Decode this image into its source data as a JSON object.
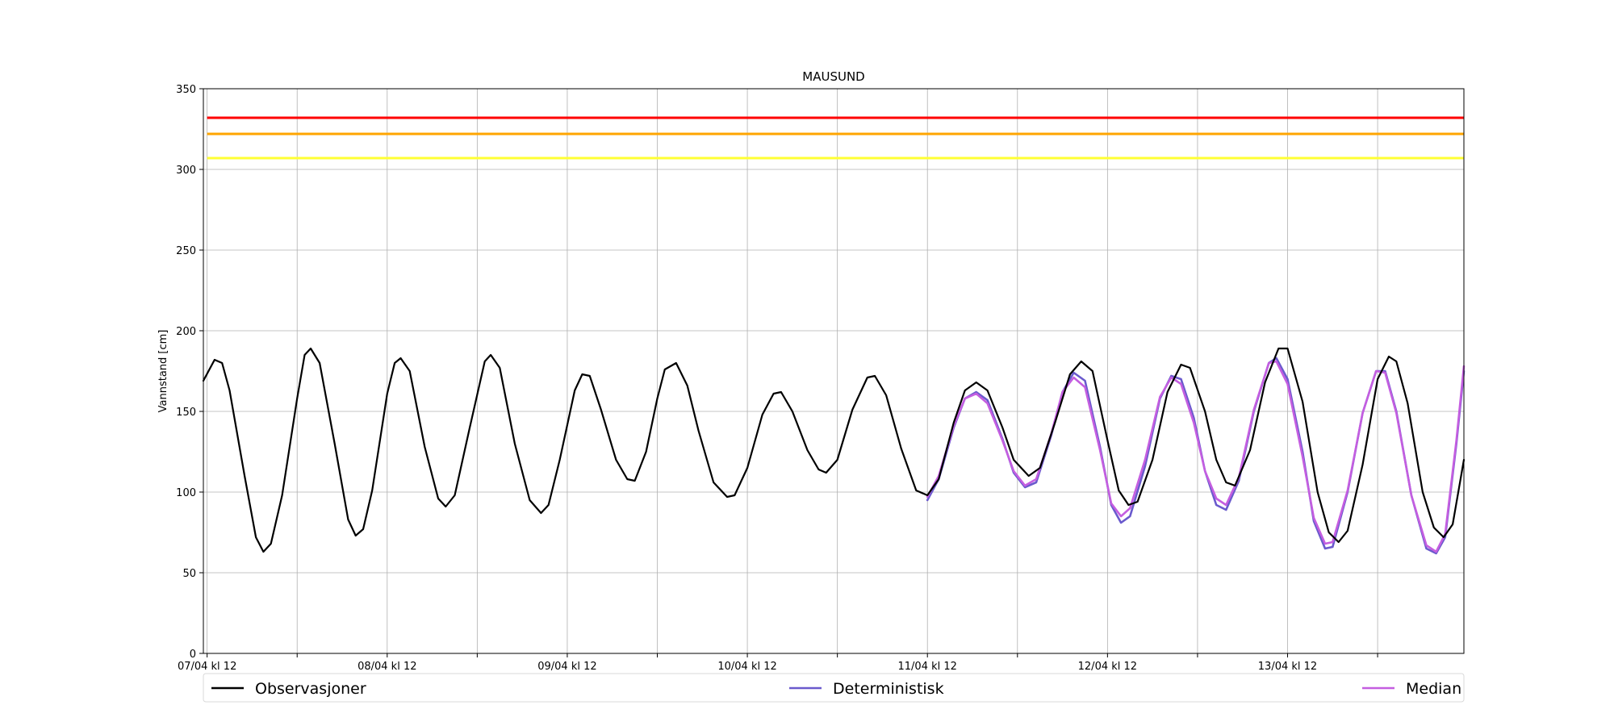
{
  "chart_data": {
    "type": "line",
    "title": "MAUSUND",
    "ylabel": "Vannstand [cm]",
    "xlabel": "",
    "ylim": [
      0,
      350
    ],
    "yticks": [
      0,
      50,
      100,
      150,
      200,
      250,
      300,
      350
    ],
    "x_unit": "hours after 07/04 kl 12",
    "xlim": [
      -0.5,
      167.5
    ],
    "xticks": [
      {
        "x": 0,
        "label": "07/04 kl 12"
      },
      {
        "x": 24,
        "label": "08/04 kl 12"
      },
      {
        "x": 48,
        "label": "09/04 kl 12"
      },
      {
        "x": 72,
        "label": "10/04 kl 12"
      },
      {
        "x": 96,
        "label": "11/04 kl 12"
      },
      {
        "x": 120,
        "label": "12/04 kl 12"
      },
      {
        "x": 144,
        "label": "13/04 kl 12"
      }
    ],
    "minor_xticks": [
      12,
      36,
      60,
      84,
      108,
      132,
      156
    ],
    "grid": true,
    "legend_position": "bottom",
    "thresholds": [
      {
        "value": 332,
        "color": "#ff0000"
      },
      {
        "value": 322,
        "color": "#ffa500"
      },
      {
        "value": 307,
        "color": "#ffff33"
      }
    ],
    "series": [
      {
        "name": "Observasjoner",
        "color": "#000000",
        "points": [
          [
            -0.5,
            169
          ],
          [
            1,
            182
          ],
          [
            2,
            180
          ],
          [
            3,
            163
          ],
          [
            5,
            110
          ],
          [
            6.5,
            72
          ],
          [
            7.5,
            63
          ],
          [
            8.5,
            68
          ],
          [
            10,
            98
          ],
          [
            12,
            158
          ],
          [
            13,
            185
          ],
          [
            13.8,
            189
          ],
          [
            15,
            180
          ],
          [
            17,
            130
          ],
          [
            18.8,
            83
          ],
          [
            19.8,
            73
          ],
          [
            20.8,
            77
          ],
          [
            22,
            101
          ],
          [
            24,
            161
          ],
          [
            25,
            180
          ],
          [
            25.8,
            183
          ],
          [
            27,
            175
          ],
          [
            29,
            128
          ],
          [
            30.8,
            96
          ],
          [
            31.8,
            91
          ],
          [
            33,
            98
          ],
          [
            35,
            140
          ],
          [
            37,
            181
          ],
          [
            37.8,
            185
          ],
          [
            39,
            177
          ],
          [
            41,
            130
          ],
          [
            43,
            95
          ],
          [
            44.5,
            87
          ],
          [
            45.5,
            92
          ],
          [
            47,
            120
          ],
          [
            49,
            163
          ],
          [
            50,
            173
          ],
          [
            51,
            172
          ],
          [
            52.5,
            151
          ],
          [
            54.5,
            120
          ],
          [
            56,
            108
          ],
          [
            57,
            107
          ],
          [
            58.5,
            125
          ],
          [
            60,
            158
          ],
          [
            61,
            176
          ],
          [
            62.5,
            180
          ],
          [
            64,
            166
          ],
          [
            65.5,
            138
          ],
          [
            67.5,
            106
          ],
          [
            69.3,
            97
          ],
          [
            70.3,
            98
          ],
          [
            72,
            115
          ],
          [
            74,
            148
          ],
          [
            75.5,
            161
          ],
          [
            76.5,
            162
          ],
          [
            78,
            150
          ],
          [
            80,
            126
          ],
          [
            81.5,
            114
          ],
          [
            82.5,
            112
          ],
          [
            84,
            120
          ],
          [
            86,
            151
          ],
          [
            88,
            171
          ],
          [
            89,
            172
          ],
          [
            90.5,
            160
          ],
          [
            92.5,
            127
          ],
          [
            94.5,
            101
          ],
          [
            96,
            98
          ],
          [
            97.5,
            108
          ],
          [
            99.5,
            143
          ],
          [
            101,
            163
          ],
          [
            102.5,
            168
          ],
          [
            104,
            163
          ],
          [
            106,
            140
          ],
          [
            107.5,
            120
          ],
          [
            109.5,
            110
          ],
          [
            111,
            115
          ],
          [
            113,
            143
          ],
          [
            115,
            173
          ],
          [
            116.5,
            181
          ],
          [
            118,
            175
          ],
          [
            120,
            132
          ],
          [
            121.5,
            101
          ],
          [
            122.8,
            92
          ],
          [
            124,
            94
          ],
          [
            126,
            120
          ],
          [
            128,
            162
          ],
          [
            129.8,
            179
          ],
          [
            131,
            177
          ],
          [
            133,
            150
          ],
          [
            134.5,
            120
          ],
          [
            135.8,
            106
          ],
          [
            137,
            104
          ],
          [
            139,
            126
          ],
          [
            141,
            168
          ],
          [
            142.8,
            189
          ],
          [
            144,
            189
          ],
          [
            146,
            156
          ],
          [
            148,
            100
          ],
          [
            149.5,
            75
          ],
          [
            150.8,
            69
          ],
          [
            152,
            76
          ],
          [
            154,
            117
          ],
          [
            156,
            170
          ],
          [
            157.5,
            184
          ],
          [
            158.5,
            181
          ],
          [
            160,
            155
          ],
          [
            162,
            100
          ],
          [
            163.5,
            78
          ],
          [
            164.8,
            72
          ],
          [
            166,
            80
          ],
          [
            167.5,
            120
          ]
        ]
      },
      {
        "name": "Deterministisk",
        "color": "#6a5acd",
        "points": [
          [
            96,
            95
          ],
          [
            97.5,
            108
          ],
          [
            99.5,
            140
          ],
          [
            101,
            158
          ],
          [
            102.5,
            162
          ],
          [
            104,
            157
          ],
          [
            106,
            133
          ],
          [
            107.5,
            112
          ],
          [
            109,
            103
          ],
          [
            110.5,
            106
          ],
          [
            112.5,
            135
          ],
          [
            114,
            162
          ],
          [
            115.5,
            174
          ],
          [
            117,
            169
          ],
          [
            119,
            128
          ],
          [
            120.5,
            92
          ],
          [
            121.8,
            81
          ],
          [
            123,
            85
          ],
          [
            125,
            116
          ],
          [
            127,
            158
          ],
          [
            128.5,
            172
          ],
          [
            129.8,
            170
          ],
          [
            131.5,
            146
          ],
          [
            133,
            113
          ],
          [
            134.5,
            92
          ],
          [
            135.8,
            89
          ],
          [
            137.5,
            107
          ],
          [
            139.5,
            150
          ],
          [
            141.5,
            180
          ],
          [
            142.5,
            183
          ],
          [
            144,
            170
          ],
          [
            146,
            125
          ],
          [
            147.5,
            82
          ],
          [
            149,
            65
          ],
          [
            150,
            66
          ],
          [
            152,
            100
          ],
          [
            154,
            149
          ],
          [
            155.8,
            175
          ],
          [
            157,
            175
          ],
          [
            158.5,
            150
          ],
          [
            160.5,
            98
          ],
          [
            162.5,
            65
          ],
          [
            163.8,
            62
          ],
          [
            165,
            72
          ],
          [
            166.5,
            130
          ],
          [
            167.5,
            175
          ]
        ]
      },
      {
        "name": "Median",
        "color": "#c45ee0",
        "points": [
          [
            96,
            97
          ],
          [
            97.5,
            110
          ],
          [
            99.5,
            141
          ],
          [
            101,
            158
          ],
          [
            102.5,
            161
          ],
          [
            104,
            155
          ],
          [
            106,
            132
          ],
          [
            107.5,
            113
          ],
          [
            109,
            104
          ],
          [
            110.5,
            108
          ],
          [
            112.5,
            136
          ],
          [
            114,
            162
          ],
          [
            115.5,
            171
          ],
          [
            117,
            165
          ],
          [
            119,
            126
          ],
          [
            120.5,
            93
          ],
          [
            121.8,
            85
          ],
          [
            123,
            90
          ],
          [
            125,
            120
          ],
          [
            127,
            159
          ],
          [
            128.5,
            171
          ],
          [
            129.8,
            167
          ],
          [
            131.5,
            143
          ],
          [
            133,
            113
          ],
          [
            134.5,
            96
          ],
          [
            135.8,
            92
          ],
          [
            137.5,
            109
          ],
          [
            139.5,
            151
          ],
          [
            141.5,
            180
          ],
          [
            142.5,
            181
          ],
          [
            144,
            167
          ],
          [
            146,
            122
          ],
          [
            147.5,
            84
          ],
          [
            149,
            68
          ],
          [
            150,
            69
          ],
          [
            152,
            101
          ],
          [
            154,
            149
          ],
          [
            155.8,
            175
          ],
          [
            157,
            174
          ],
          [
            158.5,
            149
          ],
          [
            160.5,
            98
          ],
          [
            162.5,
            67
          ],
          [
            163.8,
            63
          ],
          [
            165,
            74
          ],
          [
            166.5,
            132
          ],
          [
            167.5,
            178
          ]
        ]
      }
    ]
  }
}
